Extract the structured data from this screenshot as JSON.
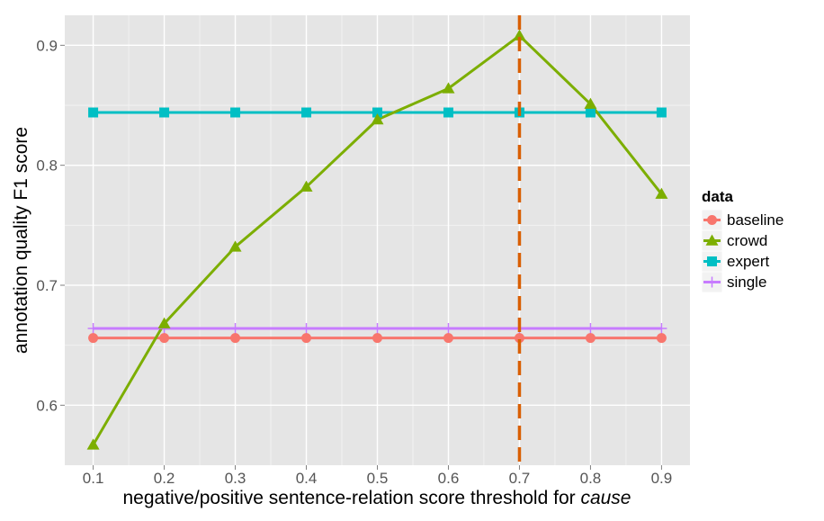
{
  "chart_data": {
    "type": "line",
    "xlabel_main": "negative/positive sentence-relation score threshold for ",
    "xlabel_italic": "cause",
    "ylabel": "annotation quality F1 score",
    "x": [
      0.1,
      0.2,
      0.3,
      0.4,
      0.5,
      0.6,
      0.7,
      0.8,
      0.9
    ],
    "x_tick_labels": [
      "0.1",
      "0.2",
      "0.3",
      "0.4",
      "0.5",
      "0.6",
      "0.7",
      "0.8",
      "0.9"
    ],
    "xlim": [
      0.06,
      0.94
    ],
    "ylim": [
      0.55,
      0.925
    ],
    "y_ticks": [
      0.6,
      0.7,
      0.8,
      0.9
    ],
    "y_tick_labels": [
      "0.6",
      "0.7",
      "0.8",
      "0.9"
    ],
    "grid": true,
    "legend": {
      "title": "data",
      "position": "right"
    },
    "series": [
      {
        "name": "baseline",
        "color": "#F8766D",
        "marker": "circle",
        "values": [
          0.656,
          0.656,
          0.656,
          0.656,
          0.656,
          0.656,
          0.656,
          0.656,
          0.656
        ]
      },
      {
        "name": "crowd",
        "color": "#7CAE00",
        "marker": "triangle",
        "values": [
          0.567,
          0.668,
          0.732,
          0.782,
          0.838,
          0.864,
          0.908,
          0.851,
          0.776
        ]
      },
      {
        "name": "expert",
        "color": "#00BFC4",
        "marker": "square",
        "values": [
          0.844,
          0.844,
          0.844,
          0.844,
          0.844,
          0.844,
          0.844,
          0.844,
          0.844
        ]
      },
      {
        "name": "single",
        "color": "#C77CFF",
        "marker": "plus",
        "values": [
          0.664,
          0.664,
          0.664,
          0.664,
          0.664,
          0.664,
          0.664,
          0.664,
          0.664
        ]
      }
    ],
    "annotations": [
      {
        "type": "vline",
        "x": 0.7,
        "color": "#D95F02",
        "style": "dashed"
      }
    ]
  }
}
